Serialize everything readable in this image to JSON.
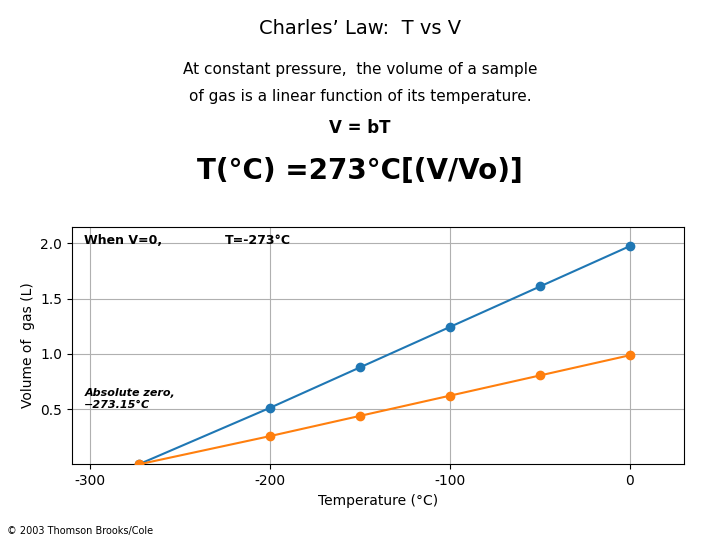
{
  "chart_data": {
    "type": "line",
    "title": "Charles’ Law:  T vs V",
    "annotations": [
      "At constant pressure,  the volume of a sample",
      "of gas is a linear function of its temperature.",
      "V = bT",
      "T(°C) =273°C[(V/Vo)]",
      "When V=0,",
      "T=-273°C",
      "Absolute zero,\n−273.15°C",
      "© 2003 Thomson Brooks/Cole"
    ],
    "xlabel": "Temperature (°C)",
    "ylabel": "Volume of  gas (L)",
    "x": [
      -273,
      -200,
      -150,
      -100,
      -50,
      0
    ],
    "series": [
      {
        "values": [
          0.0,
          0.512,
          0.878,
          1.244,
          1.61,
          1.976
        ],
        "marker": "o",
        "line_style": "solid"
      },
      {
        "values": [
          0.0,
          0.256,
          0.439,
          0.622,
          0.805,
          0.988
        ],
        "marker": "o",
        "line_style": "solid"
      }
    ],
    "xlim": [
      -310,
      30
    ],
    "ylim": [
      0.0,
      2.15
    ],
    "xticks": [
      -300,
      -200,
      -100,
      0
    ],
    "yticks": [
      0.5,
      {
        "value": 1.0,
        "label": "1.0"
      },
      1.5,
      {
        "value": 2.0,
        "label": "2.0"
      }
    ],
    "grid": true
  }
}
